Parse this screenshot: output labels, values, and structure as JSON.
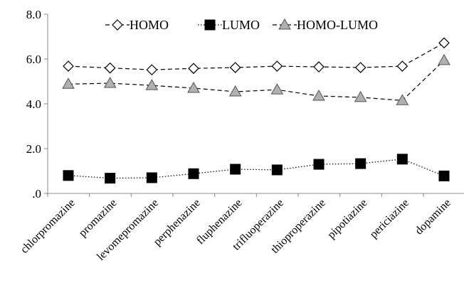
{
  "chart_data": {
    "type": "line",
    "title": "",
    "xlabel": "",
    "ylabel": "",
    "categories": [
      "chlorpromazine",
      "promazine",
      "levomepromazine",
      "perphenazine",
      "fluphenazine",
      "trifluoperazine",
      "thioproperazine",
      "pipotiazine",
      "periciazine",
      "dopamine"
    ],
    "ylim": [
      0,
      8
    ],
    "yticks": [
      0,
      2,
      4,
      6,
      8
    ],
    "ytick_labels": [
      ".0",
      "2.0",
      "4.0",
      "6.0",
      "8.0"
    ],
    "grid": false,
    "legend": "top",
    "series": [
      {
        "name": "HOMO",
        "marker": "diamond-open",
        "line": "dashed",
        "color": "#000000",
        "fill": "#ffffff",
        "values": [
          5.68,
          5.6,
          5.52,
          5.58,
          5.62,
          5.68,
          5.65,
          5.62,
          5.68,
          6.72
        ]
      },
      {
        "name": "LUMO",
        "marker": "square-filled",
        "line": "dotted",
        "color": "#000000",
        "fill": "#000000",
        "values": [
          0.8,
          0.68,
          0.7,
          0.88,
          1.08,
          1.05,
          1.3,
          1.33,
          1.53,
          0.78
        ]
      },
      {
        "name": "HOMO-LUMO",
        "marker": "triangle-gray",
        "line": "dashed",
        "color": "#000000",
        "fill": "#b0b0b0",
        "values": [
          4.88,
          4.92,
          4.82,
          4.7,
          4.54,
          4.63,
          4.35,
          4.29,
          4.15,
          5.94
        ]
      }
    ]
  }
}
